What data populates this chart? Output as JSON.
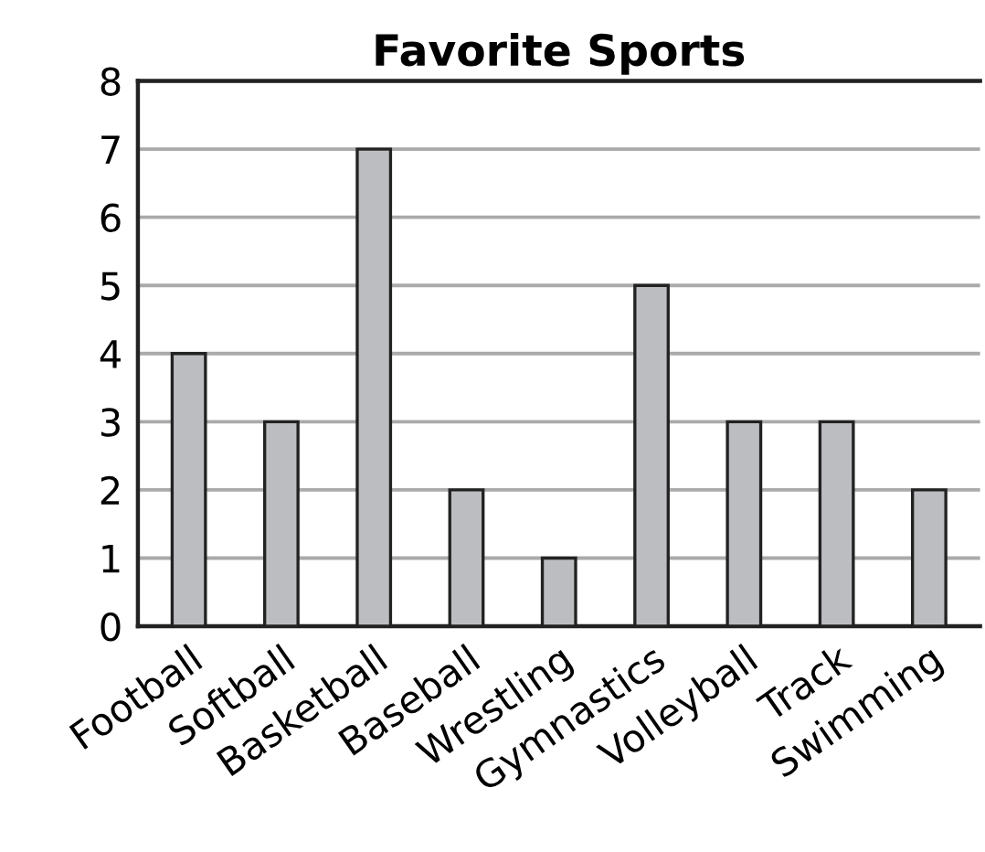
{
  "chart_data": {
    "type": "bar",
    "title": "Favorite Sports",
    "categories": [
      "Football",
      "Softball",
      "Basketball",
      "Baseball",
      "Wrestling",
      "Gymnastics",
      "Volleyball",
      "Track",
      "Swimming"
    ],
    "values": [
      4,
      3,
      7,
      2,
      1,
      5,
      3,
      3,
      2
    ],
    "color": "#bcbdc0",
    "ylim": [
      0,
      8
    ],
    "yticks": [
      0,
      1,
      2,
      3,
      4,
      5,
      6,
      7,
      8
    ],
    "grid": "y"
  }
}
